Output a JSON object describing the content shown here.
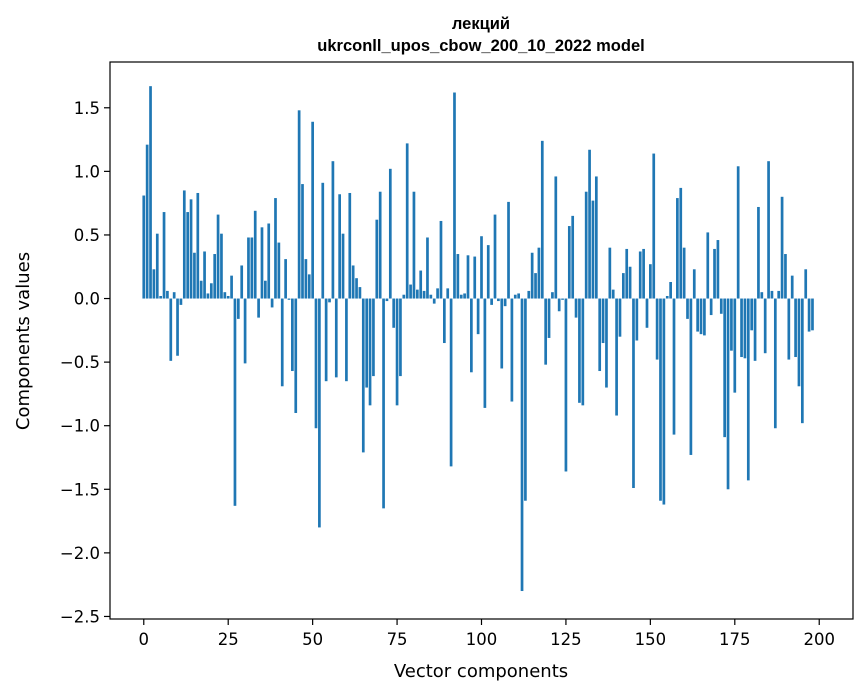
{
  "chart_data": {
    "type": "bar",
    "title_line1": "лекций",
    "title_line2": "ukrconll_upos_cbow_200_10_2022 model",
    "xlabel": "Vector components",
    "ylabel": "Components values",
    "xlim": [
      -10,
      210
    ],
    "ylim": [
      -2.52,
      1.86
    ],
    "xticks": [
      0,
      25,
      50,
      75,
      100,
      125,
      150,
      175,
      200
    ],
    "yticks": [
      -2.5,
      -2.0,
      -1.5,
      -1.0,
      -0.5,
      0.0,
      0.5,
      1.0,
      1.5
    ],
    "ytick_labels": [
      "−2.5",
      "−2.0",
      "−1.5",
      "−1.0",
      "−0.5",
      "0.0",
      "0.5",
      "1.0",
      "1.5"
    ],
    "bar_color": "#1f77b4",
    "grid": false,
    "values": [
      0.81,
      1.21,
      1.67,
      0.23,
      0.51,
      0.02,
      0.68,
      0.06,
      -0.49,
      0.05,
      -0.45,
      -0.05,
      0.85,
      0.68,
      0.78,
      0.36,
      0.83,
      0.14,
      0.37,
      0.04,
      0.12,
      0.35,
      0.66,
      0.51,
      0.05,
      0.02,
      0.18,
      -1.63,
      -0.16,
      0.26,
      -0.51,
      0.48,
      0.48,
      0.69,
      -0.15,
      0.56,
      0.14,
      0.59,
      -0.07,
      0.79,
      0.44,
      -0.69,
      0.31,
      -0.01,
      -0.57,
      -0.9,
      1.48,
      0.9,
      0.31,
      0.19,
      1.39,
      -1.02,
      -1.8,
      0.91,
      -0.65,
      -0.03,
      1.08,
      -0.62,
      0.82,
      0.51,
      -0.65,
      0.83,
      0.26,
      0.16,
      0.09,
      -1.21,
      -0.7,
      -0.84,
      -0.61,
      0.62,
      0.84,
      -1.65,
      -0.02,
      1.02,
      -0.23,
      -0.84,
      -0.61,
      0.03,
      1.22,
      0.11,
      0.84,
      0.07,
      0.22,
      0.06,
      0.48,
      0.03,
      -0.04,
      0.08,
      0.61,
      -0.35,
      0.08,
      -1.32,
      1.62,
      0.35,
      0.03,
      0.04,
      0.34,
      -0.58,
      0.33,
      -0.28,
      0.49,
      -0.86,
      0.42,
      -0.05,
      0.66,
      -0.02,
      -0.55,
      -0.06,
      0.76,
      -0.81,
      0.03,
      0.04,
      -2.3,
      -1.59,
      0.06,
      0.36,
      0.2,
      0.4,
      1.24,
      -0.52,
      -0.31,
      0.05,
      0.96,
      -0.1,
      -0.01,
      -1.36,
      0.57,
      0.65,
      -0.15,
      -0.82,
      -0.84,
      0.84,
      1.17,
      0.77,
      0.96,
      -0.57,
      -0.35,
      -0.7,
      0.4,
      0.07,
      -0.92,
      -0.3,
      0.2,
      0.39,
      0.25,
      -1.49,
      -0.33,
      0.37,
      0.39,
      -0.23,
      0.27,
      1.14,
      -0.48,
      -1.59,
      -1.62,
      0.02,
      0.13,
      -1.07,
      0.79,
      0.87,
      0.4,
      -0.16,
      -1.23,
      0.23,
      -0.26,
      -0.28,
      -0.29,
      0.52,
      -0.13,
      0.39,
      0.46,
      -0.12,
      -1.09,
      -1.5,
      -0.41,
      -0.74,
      1.04,
      -0.46,
      -0.47,
      -1.43,
      -0.25,
      -0.49,
      0.72,
      0.05,
      -0.43,
      1.08,
      0.06,
      -1.02,
      0.06,
      0.8,
      0.35,
      -0.48,
      0.18,
      -0.46,
      -0.69,
      -0.98,
      0.23,
      -0.26,
      -0.25,
      0.0
    ]
  }
}
